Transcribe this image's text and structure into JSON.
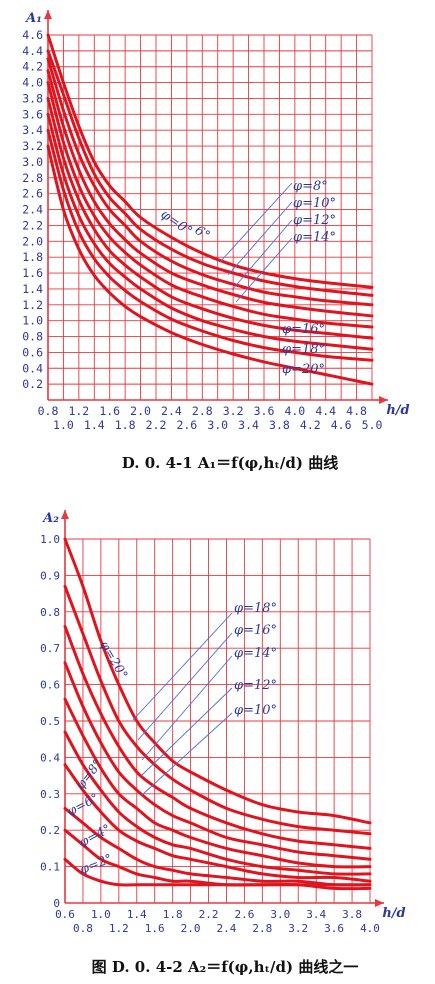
{
  "chart_data": [
    {
      "type": "line",
      "caption": "D. 0. 4-1    A₁＝f(φ,hₜ/d) 曲线",
      "ylabel": "A₁",
      "xlabel": "h/d",
      "xlim": [
        0.8,
        5.0
      ],
      "ylim": [
        0,
        4.6
      ],
      "x_ticks_row1": [
        "0.8",
        "1.2",
        "1.6",
        "2.0",
        "2.4",
        "2.8",
        "3.2",
        "3.6",
        "4.0",
        "4.4",
        "4.8"
      ],
      "x_ticks_row2": [
        "1.0",
        "1.4",
        "1.8",
        "2.2",
        "2.6",
        "3.0",
        "3.4",
        "3.8",
        "4.2",
        "4.6",
        "5.0"
      ],
      "y_ticks": [
        "0.2",
        "0.4",
        "0.6",
        "0.8",
        "1.0",
        "1.2",
        "1.4",
        "1.6",
        "1.8",
        "2.0",
        "2.2",
        "2.4",
        "2.6",
        "2.8",
        "3.0",
        "3.2",
        "3.4",
        "3.6",
        "3.8",
        "4.0",
        "4.2",
        "4.4",
        "4.6"
      ],
      "series": [
        {
          "name": "φ=0°",
          "x": [
            0.8,
            1.0,
            1.2,
            1.4,
            1.6,
            1.8,
            2.0,
            2.4,
            2.8,
            3.2,
            3.6,
            4.0,
            4.4,
            5.0
          ],
          "y": [
            4.6,
            4.0,
            3.45,
            3.0,
            2.7,
            2.5,
            2.3,
            2.05,
            1.85,
            1.7,
            1.6,
            1.53,
            1.48,
            1.42
          ]
        },
        {
          "name": "φ=6°",
          "x": [
            0.8,
            1.0,
            1.2,
            1.4,
            1.6,
            1.8,
            2.0,
            2.4,
            2.8,
            3.2,
            3.6,
            4.0,
            4.4,
            5.0
          ],
          "y": [
            4.4,
            3.85,
            3.3,
            2.85,
            2.55,
            2.35,
            2.15,
            1.9,
            1.72,
            1.6,
            1.5,
            1.43,
            1.38,
            1.32
          ]
        },
        {
          "name": "φ=8°",
          "x": [
            0.8,
            1.0,
            1.2,
            1.4,
            1.6,
            1.8,
            2.0,
            2.4,
            2.8,
            3.2,
            3.6,
            4.0,
            4.4,
            5.0
          ],
          "y": [
            4.3,
            3.65,
            3.1,
            2.7,
            2.4,
            2.2,
            2.0,
            1.75,
            1.58,
            1.46,
            1.36,
            1.3,
            1.25,
            1.2
          ]
        },
        {
          "name": "φ=10°",
          "x": [
            0.8,
            1.0,
            1.2,
            1.4,
            1.6,
            1.8,
            2.0,
            2.4,
            2.8,
            3.2,
            3.6,
            4.0,
            4.4,
            5.0
          ],
          "y": [
            4.15,
            3.45,
            2.9,
            2.5,
            2.22,
            2.02,
            1.85,
            1.6,
            1.45,
            1.33,
            1.23,
            1.17,
            1.12,
            1.06
          ]
        },
        {
          "name": "φ=12°",
          "x": [
            0.8,
            1.0,
            1.2,
            1.4,
            1.6,
            1.8,
            2.0,
            2.4,
            2.8,
            3.2,
            3.6,
            4.0,
            4.4,
            5.0
          ],
          "y": [
            4.0,
            3.25,
            2.7,
            2.32,
            2.05,
            1.86,
            1.7,
            1.45,
            1.3,
            1.18,
            1.08,
            1.02,
            0.97,
            0.92
          ]
        },
        {
          "name": "φ=14°",
          "x": [
            0.8,
            1.0,
            1.2,
            1.4,
            1.6,
            1.8,
            2.0,
            2.4,
            2.8,
            3.2,
            3.6,
            4.0,
            4.4,
            5.0
          ],
          "y": [
            3.8,
            3.05,
            2.52,
            2.15,
            1.88,
            1.7,
            1.55,
            1.3,
            1.15,
            1.03,
            0.94,
            0.88,
            0.84,
            0.78
          ]
        },
        {
          "name": "φ=16°",
          "x": [
            0.8,
            1.0,
            1.2,
            1.4,
            1.6,
            1.8,
            2.0,
            2.4,
            2.8,
            3.2,
            3.6,
            4.0,
            4.4,
            5.0
          ],
          "y": [
            3.6,
            2.85,
            2.32,
            1.97,
            1.72,
            1.55,
            1.4,
            1.16,
            1.0,
            0.89,
            0.8,
            0.74,
            0.7,
            0.64
          ]
        },
        {
          "name": "φ=18°",
          "x": [
            0.8,
            1.0,
            1.2,
            1.4,
            1.6,
            1.8,
            2.0,
            2.4,
            2.8,
            3.2,
            3.6,
            4.0,
            4.4,
            5.0
          ],
          "y": [
            3.4,
            2.65,
            2.12,
            1.78,
            1.55,
            1.38,
            1.24,
            1.02,
            0.87,
            0.75,
            0.66,
            0.6,
            0.55,
            0.5
          ]
        },
        {
          "name": "φ=20°",
          "x": [
            0.8,
            1.0,
            1.2,
            1.4,
            1.6,
            1.8,
            2.0,
            2.4,
            2.8,
            3.2,
            3.6,
            4.0,
            4.4,
            5.0
          ],
          "y": [
            3.2,
            2.4,
            1.9,
            1.57,
            1.35,
            1.18,
            1.05,
            0.85,
            0.7,
            0.58,
            0.48,
            0.4,
            0.32,
            0.2
          ]
        }
      ],
      "labels": {
        "top": [
          "φ=8°",
          "φ=10°",
          "φ=12°",
          "φ=14°"
        ],
        "mid": [
          "φ=0°",
          "6°"
        ],
        "bottom": [
          "φ=16°",
          "φ=18°",
          "φ=20°"
        ]
      },
      "colors": {
        "grid": "#e8383e",
        "curve": "#e0141e",
        "text": "#2a3a9a",
        "leader": "#4a6fd6"
      }
    },
    {
      "type": "line",
      "caption": "图 D. 0. 4-2    A₂＝f(φ,hₜ/d) 曲线之一",
      "ylabel": "A₂",
      "xlabel": "h/d",
      "xlim": [
        0.6,
        4.0
      ],
      "ylim": [
        0,
        1.0
      ],
      "x_ticks_row1": [
        "0.6",
        "1.0",
        "1.4",
        "1.8",
        "2.2",
        "2.6",
        "3.0",
        "3.4",
        "3.8"
      ],
      "x_ticks_row2": [
        "0.8",
        "1.2",
        "1.6",
        "2.0",
        "2.4",
        "2.8",
        "3.2",
        "3.6",
        "4.0"
      ],
      "y_ticks": [
        "0",
        "0.1",
        "0.2",
        "0.3",
        "0.4",
        "0.5",
        "0.6",
        "0.7",
        "0.8",
        "0.9",
        "1.0"
      ],
      "series": [
        {
          "name": "φ=20°",
          "x": [
            0.6,
            0.8,
            1.0,
            1.2,
            1.4,
            1.6,
            1.8,
            2.0,
            2.4,
            2.8,
            3.2,
            3.6,
            4.0
          ],
          "y": [
            1.0,
            0.87,
            0.72,
            0.6,
            0.5,
            0.44,
            0.39,
            0.36,
            0.31,
            0.27,
            0.25,
            0.24,
            0.22
          ]
        },
        {
          "name": "φ=18°",
          "x": [
            0.6,
            0.8,
            1.0,
            1.2,
            1.4,
            1.6,
            1.8,
            2.0,
            2.4,
            2.8,
            3.2,
            3.6,
            4.0
          ],
          "y": [
            0.87,
            0.74,
            0.61,
            0.5,
            0.43,
            0.38,
            0.34,
            0.31,
            0.26,
            0.23,
            0.21,
            0.2,
            0.19
          ]
        },
        {
          "name": "φ=16°",
          "x": [
            0.6,
            0.8,
            1.0,
            1.2,
            1.4,
            1.6,
            1.8,
            2.0,
            2.4,
            2.8,
            3.2,
            3.6,
            4.0
          ],
          "y": [
            0.76,
            0.63,
            0.52,
            0.43,
            0.36,
            0.32,
            0.29,
            0.26,
            0.22,
            0.19,
            0.17,
            0.16,
            0.15
          ]
        },
        {
          "name": "φ=14°",
          "x": [
            0.6,
            0.8,
            1.0,
            1.2,
            1.4,
            1.6,
            1.8,
            2.0,
            2.4,
            2.8,
            3.2,
            3.6,
            4.0
          ],
          "y": [
            0.66,
            0.54,
            0.44,
            0.36,
            0.31,
            0.27,
            0.24,
            0.22,
            0.18,
            0.16,
            0.14,
            0.13,
            0.12
          ]
        },
        {
          "name": "φ=12°",
          "x": [
            0.6,
            0.8,
            1.0,
            1.2,
            1.4,
            1.6,
            1.8,
            2.0,
            2.4,
            2.8,
            3.2,
            3.6,
            4.0
          ],
          "y": [
            0.56,
            0.46,
            0.37,
            0.3,
            0.26,
            0.22,
            0.2,
            0.18,
            0.15,
            0.13,
            0.11,
            0.1,
            0.1
          ]
        },
        {
          "name": "φ=10°",
          "x": [
            0.6,
            0.8,
            1.0,
            1.2,
            1.4,
            1.6,
            1.8,
            2.0,
            2.4,
            2.8,
            3.2,
            3.6,
            4.0
          ],
          "y": [
            0.47,
            0.38,
            0.31,
            0.25,
            0.21,
            0.18,
            0.16,
            0.15,
            0.12,
            0.1,
            0.09,
            0.08,
            0.08
          ]
        },
        {
          "name": "φ=8°",
          "x": [
            0.6,
            0.8,
            1.0,
            1.2,
            1.4,
            1.6,
            1.8,
            2.0,
            2.4,
            2.8,
            3.2,
            3.6,
            4.0
          ],
          "y": [
            0.38,
            0.31,
            0.25,
            0.2,
            0.17,
            0.15,
            0.13,
            0.12,
            0.1,
            0.08,
            0.07,
            0.07,
            0.06
          ]
        },
        {
          "name": "φ=6°",
          "x": [
            0.6,
            0.8,
            1.0,
            1.2,
            1.4,
            1.6,
            1.8,
            2.0,
            2.4,
            2.8,
            3.2,
            3.6,
            4.0
          ],
          "y": [
            0.26,
            0.22,
            0.18,
            0.15,
            0.12,
            0.1,
            0.09,
            0.08,
            0.07,
            0.06,
            0.06,
            0.05,
            0.05
          ]
        },
        {
          "name": "φ=4°",
          "x": [
            0.6,
            0.8,
            1.0,
            1.2,
            1.4,
            1.6,
            1.8,
            2.0,
            2.4,
            2.8,
            3.2,
            3.6,
            4.0
          ],
          "y": [
            0.2,
            0.16,
            0.12,
            0.1,
            0.08,
            0.07,
            0.06,
            0.06,
            0.05,
            0.05,
            0.05,
            0.04,
            0.04
          ]
        },
        {
          "name": "φ=2°",
          "x": [
            0.6,
            0.8,
            1.0,
            1.2,
            1.4,
            1.6,
            1.8,
            2.0,
            2.4,
            2.8,
            3.2,
            3.6,
            4.0
          ],
          "y": [
            0.12,
            0.08,
            0.06,
            0.05,
            0.05,
            0.05,
            0.05,
            0.05,
            0.05,
            0.05,
            0.05,
            0.05,
            0.05
          ]
        }
      ],
      "labels": {
        "top": [
          "φ=18°",
          "φ=16°",
          "φ=14°",
          "φ=12°",
          "φ=10°"
        ],
        "inline": [
          "φ=20°",
          "φ=8°",
          "φ=6°",
          "φ=4°",
          "φ=2°"
        ]
      },
      "colors": {
        "grid": "#e8383e",
        "curve": "#e0141e",
        "text": "#2a3a9a",
        "leader": "#4a6fd6"
      }
    }
  ]
}
